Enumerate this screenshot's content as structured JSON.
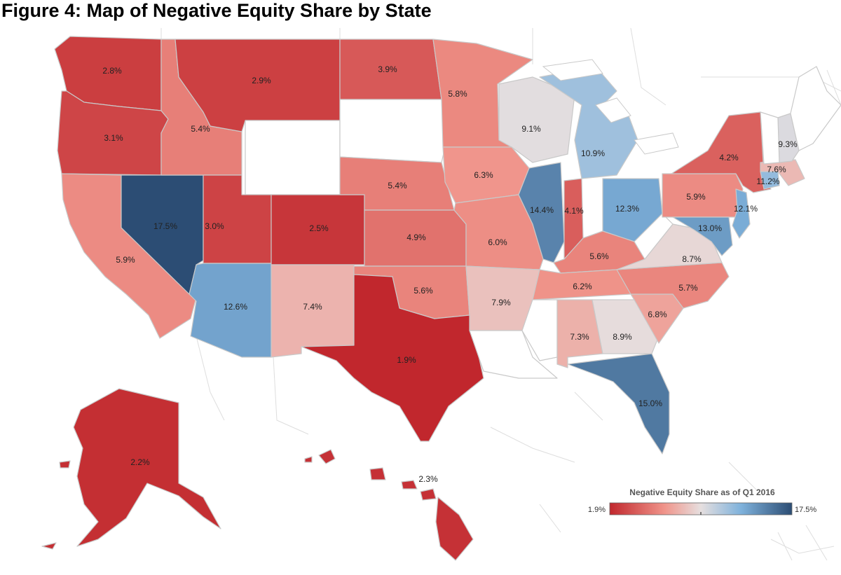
{
  "title": "Figure 4: Map of Negative Equity Share by State",
  "legend": {
    "title": "Negative Equity Share as of Q1 2016",
    "min_label": "1.9%",
    "max_label": "17.5%",
    "min": 1.9,
    "max": 17.5,
    "midpoint": 9.0,
    "colors": [
      "#c1272d",
      "#f0948a",
      "#e6dfdf",
      "#7fb2dc",
      "#2c4d74"
    ]
  },
  "no_data_color": "#ffffff",
  "states": [
    {
      "id": "WA",
      "label": "2.8%",
      "value": 2.8
    },
    {
      "id": "OR",
      "label": "3.1%",
      "value": 3.1
    },
    {
      "id": "CA",
      "label": "5.9%",
      "value": 5.9
    },
    {
      "id": "NV",
      "label": "17.5%",
      "value": 17.5
    },
    {
      "id": "ID",
      "label": "5.4%",
      "value": 5.4
    },
    {
      "id": "MT",
      "label": "2.9%",
      "value": 2.9
    },
    {
      "id": "WY",
      "label": "",
      "value": null
    },
    {
      "id": "UT",
      "label": "3.0%",
      "value": 3.0
    },
    {
      "id": "AZ",
      "label": "12.6%",
      "value": 12.6
    },
    {
      "id": "CO",
      "label": "2.5%",
      "value": 2.5
    },
    {
      "id": "NM",
      "label": "7.4%",
      "value": 7.4
    },
    {
      "id": "ND",
      "label": "3.9%",
      "value": 3.9
    },
    {
      "id": "SD",
      "label": "",
      "value": null
    },
    {
      "id": "NE",
      "label": "5.4%",
      "value": 5.4
    },
    {
      "id": "KS",
      "label": "4.9%",
      "value": 4.9
    },
    {
      "id": "OK",
      "label": "5.6%",
      "value": 5.6
    },
    {
      "id": "TX",
      "label": "1.9%",
      "value": 1.9
    },
    {
      "id": "MN",
      "label": "5.8%",
      "value": 5.8
    },
    {
      "id": "IA",
      "label": "6.3%",
      "value": 6.3
    },
    {
      "id": "MO",
      "label": "6.0%",
      "value": 6.0
    },
    {
      "id": "AR",
      "label": "7.9%",
      "value": 7.9
    },
    {
      "id": "LA",
      "label": "",
      "value": null
    },
    {
      "id": "WI",
      "label": "9.1%",
      "value": 9.1
    },
    {
      "id": "IL",
      "label": "14.4%",
      "value": 14.4
    },
    {
      "id": "MI",
      "label": "10.9%",
      "value": 10.9
    },
    {
      "id": "IN",
      "label": "4.1%",
      "value": 4.1
    },
    {
      "id": "OH",
      "label": "12.3%",
      "value": 12.3
    },
    {
      "id": "KY",
      "label": "5.6%",
      "value": 5.6
    },
    {
      "id": "TN",
      "label": "6.2%",
      "value": 6.2
    },
    {
      "id": "MS",
      "label": "",
      "value": null
    },
    {
      "id": "AL",
      "label": "7.3%",
      "value": 7.3
    },
    {
      "id": "GA",
      "label": "8.9%",
      "value": 8.9
    },
    {
      "id": "FL",
      "label": "15.0%",
      "value": 15.0
    },
    {
      "id": "SC",
      "label": "6.8%",
      "value": 6.8
    },
    {
      "id": "NC",
      "label": "5.7%",
      "value": 5.7
    },
    {
      "id": "VA",
      "label": "8.7%",
      "value": 8.7
    },
    {
      "id": "WV",
      "label": "",
      "value": null
    },
    {
      "id": "PA",
      "label": "5.9%",
      "value": 5.9
    },
    {
      "id": "NY",
      "label": "4.2%",
      "value": 4.2
    },
    {
      "id": "NJ",
      "label": "12.1%",
      "value": 12.1
    },
    {
      "id": "MD",
      "label": "13.0%",
      "value": 13.0
    },
    {
      "id": "CT",
      "label": "11.2%",
      "value": 11.2
    },
    {
      "id": "MA",
      "label": "7.6%",
      "value": 7.6
    },
    {
      "id": "NH",
      "label": "9.3%",
      "value": 9.3
    },
    {
      "id": "VT",
      "label": "",
      "value": null
    },
    {
      "id": "ME",
      "label": "",
      "value": null
    },
    {
      "id": "AK",
      "label": "2.2%",
      "value": 2.2
    },
    {
      "id": "HI",
      "label": "2.3%",
      "value": 2.3
    }
  ]
}
